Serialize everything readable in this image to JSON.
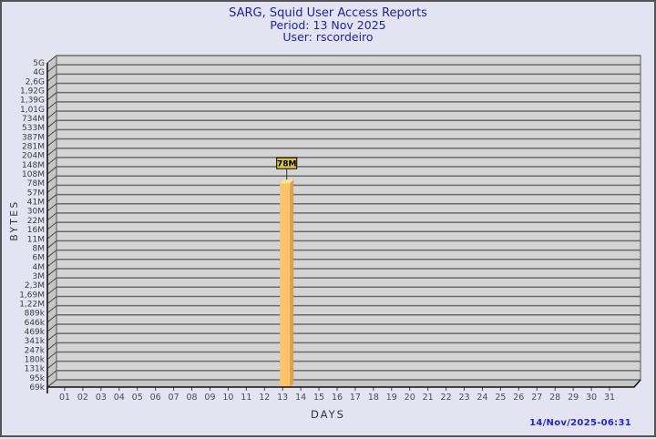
{
  "window": {
    "background": "#e3e3f2",
    "border_color": "#54545a"
  },
  "header": {
    "title": "SARG, Squid User Access Reports",
    "period": "Period: 13 Nov 2025",
    "user": "User: rscordeiro",
    "text_color": "#23239b"
  },
  "footer": {
    "timestamp": "14/Nov/2025-06:31",
    "text_color": "#2727c3"
  },
  "chart_data": {
    "type": "bar",
    "title": "SARG, Squid User Access Reports",
    "subtitle": "Period: 13 Nov 2025",
    "user_line": "User: rscordeiro",
    "xlabel": "DAYS",
    "ylabel": "BYTES",
    "y_scale": "logarithmic-like SARG byte scale",
    "y_ticks": [
      "5G",
      "4G",
      "2,6G",
      "1,92G",
      "1,39G",
      "1,01G",
      "734M",
      "533M",
      "387M",
      "281M",
      "204M",
      "148M",
      "108M",
      "78M",
      "57M",
      "41M",
      "30M",
      "22M",
      "16M",
      "11M",
      "8M",
      "6M",
      "4M",
      "3M",
      "2,3M",
      "1,69M",
      "1,22M",
      "889k",
      "646k",
      "469k",
      "341k",
      "247k",
      "180k",
      "131k",
      "95k",
      "69k"
    ],
    "x_ticks": [
      "01",
      "02",
      "03",
      "04",
      "05",
      "06",
      "07",
      "08",
      "09",
      "10",
      "11",
      "12",
      "13",
      "14",
      "15",
      "16",
      "17",
      "18",
      "19",
      "20",
      "21",
      "22",
      "23",
      "24",
      "25",
      "26",
      "27",
      "28",
      "29",
      "30",
      "31"
    ],
    "bars": [
      {
        "day": "13",
        "value_label": "78M",
        "y_tick_index": 13
      }
    ],
    "grid": true,
    "colors": {
      "plot_bg": "#d4d4d4",
      "gridline": "#6a6a6a",
      "wall": "#c6c6c6",
      "axis": "#111111",
      "y_tick_text": "#3c3c3c",
      "x_tick_text": "#4c4c4c",
      "bar_front": "#fcc469",
      "bar_side": "#dba24b",
      "bar_top": "#fde398",
      "value_box_bg": "#d8c64f",
      "value_box_border": "#000000",
      "value_text": "#000000"
    }
  }
}
